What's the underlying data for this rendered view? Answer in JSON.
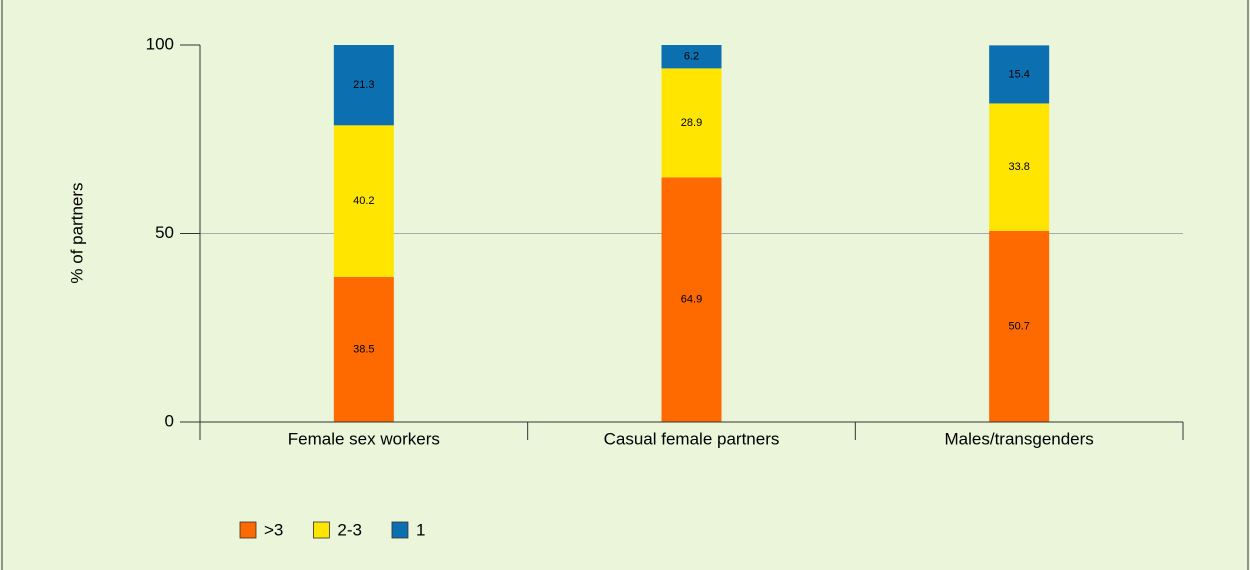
{
  "chart_data": {
    "type": "stacked_bar",
    "ylabel": "% of partners",
    "categories": [
      "Female sex workers",
      "Casual female partners",
      "Males/transgenders"
    ],
    "series": [
      {
        "name": ">3",
        "color": "#ff6a00",
        "values": [
          38.5,
          64.9,
          50.7
        ]
      },
      {
        "name": "2-3",
        "color": "#ffe500",
        "values": [
          40.2,
          28.9,
          33.8
        ]
      },
      {
        "name": "1",
        "color": "#0b6fb0",
        "values": [
          21.3,
          6.2,
          15.4
        ]
      }
    ],
    "ylim": [
      0,
      100
    ],
    "yticks": [
      0,
      50,
      100
    ],
    "grid": true,
    "legend": "bottom"
  }
}
